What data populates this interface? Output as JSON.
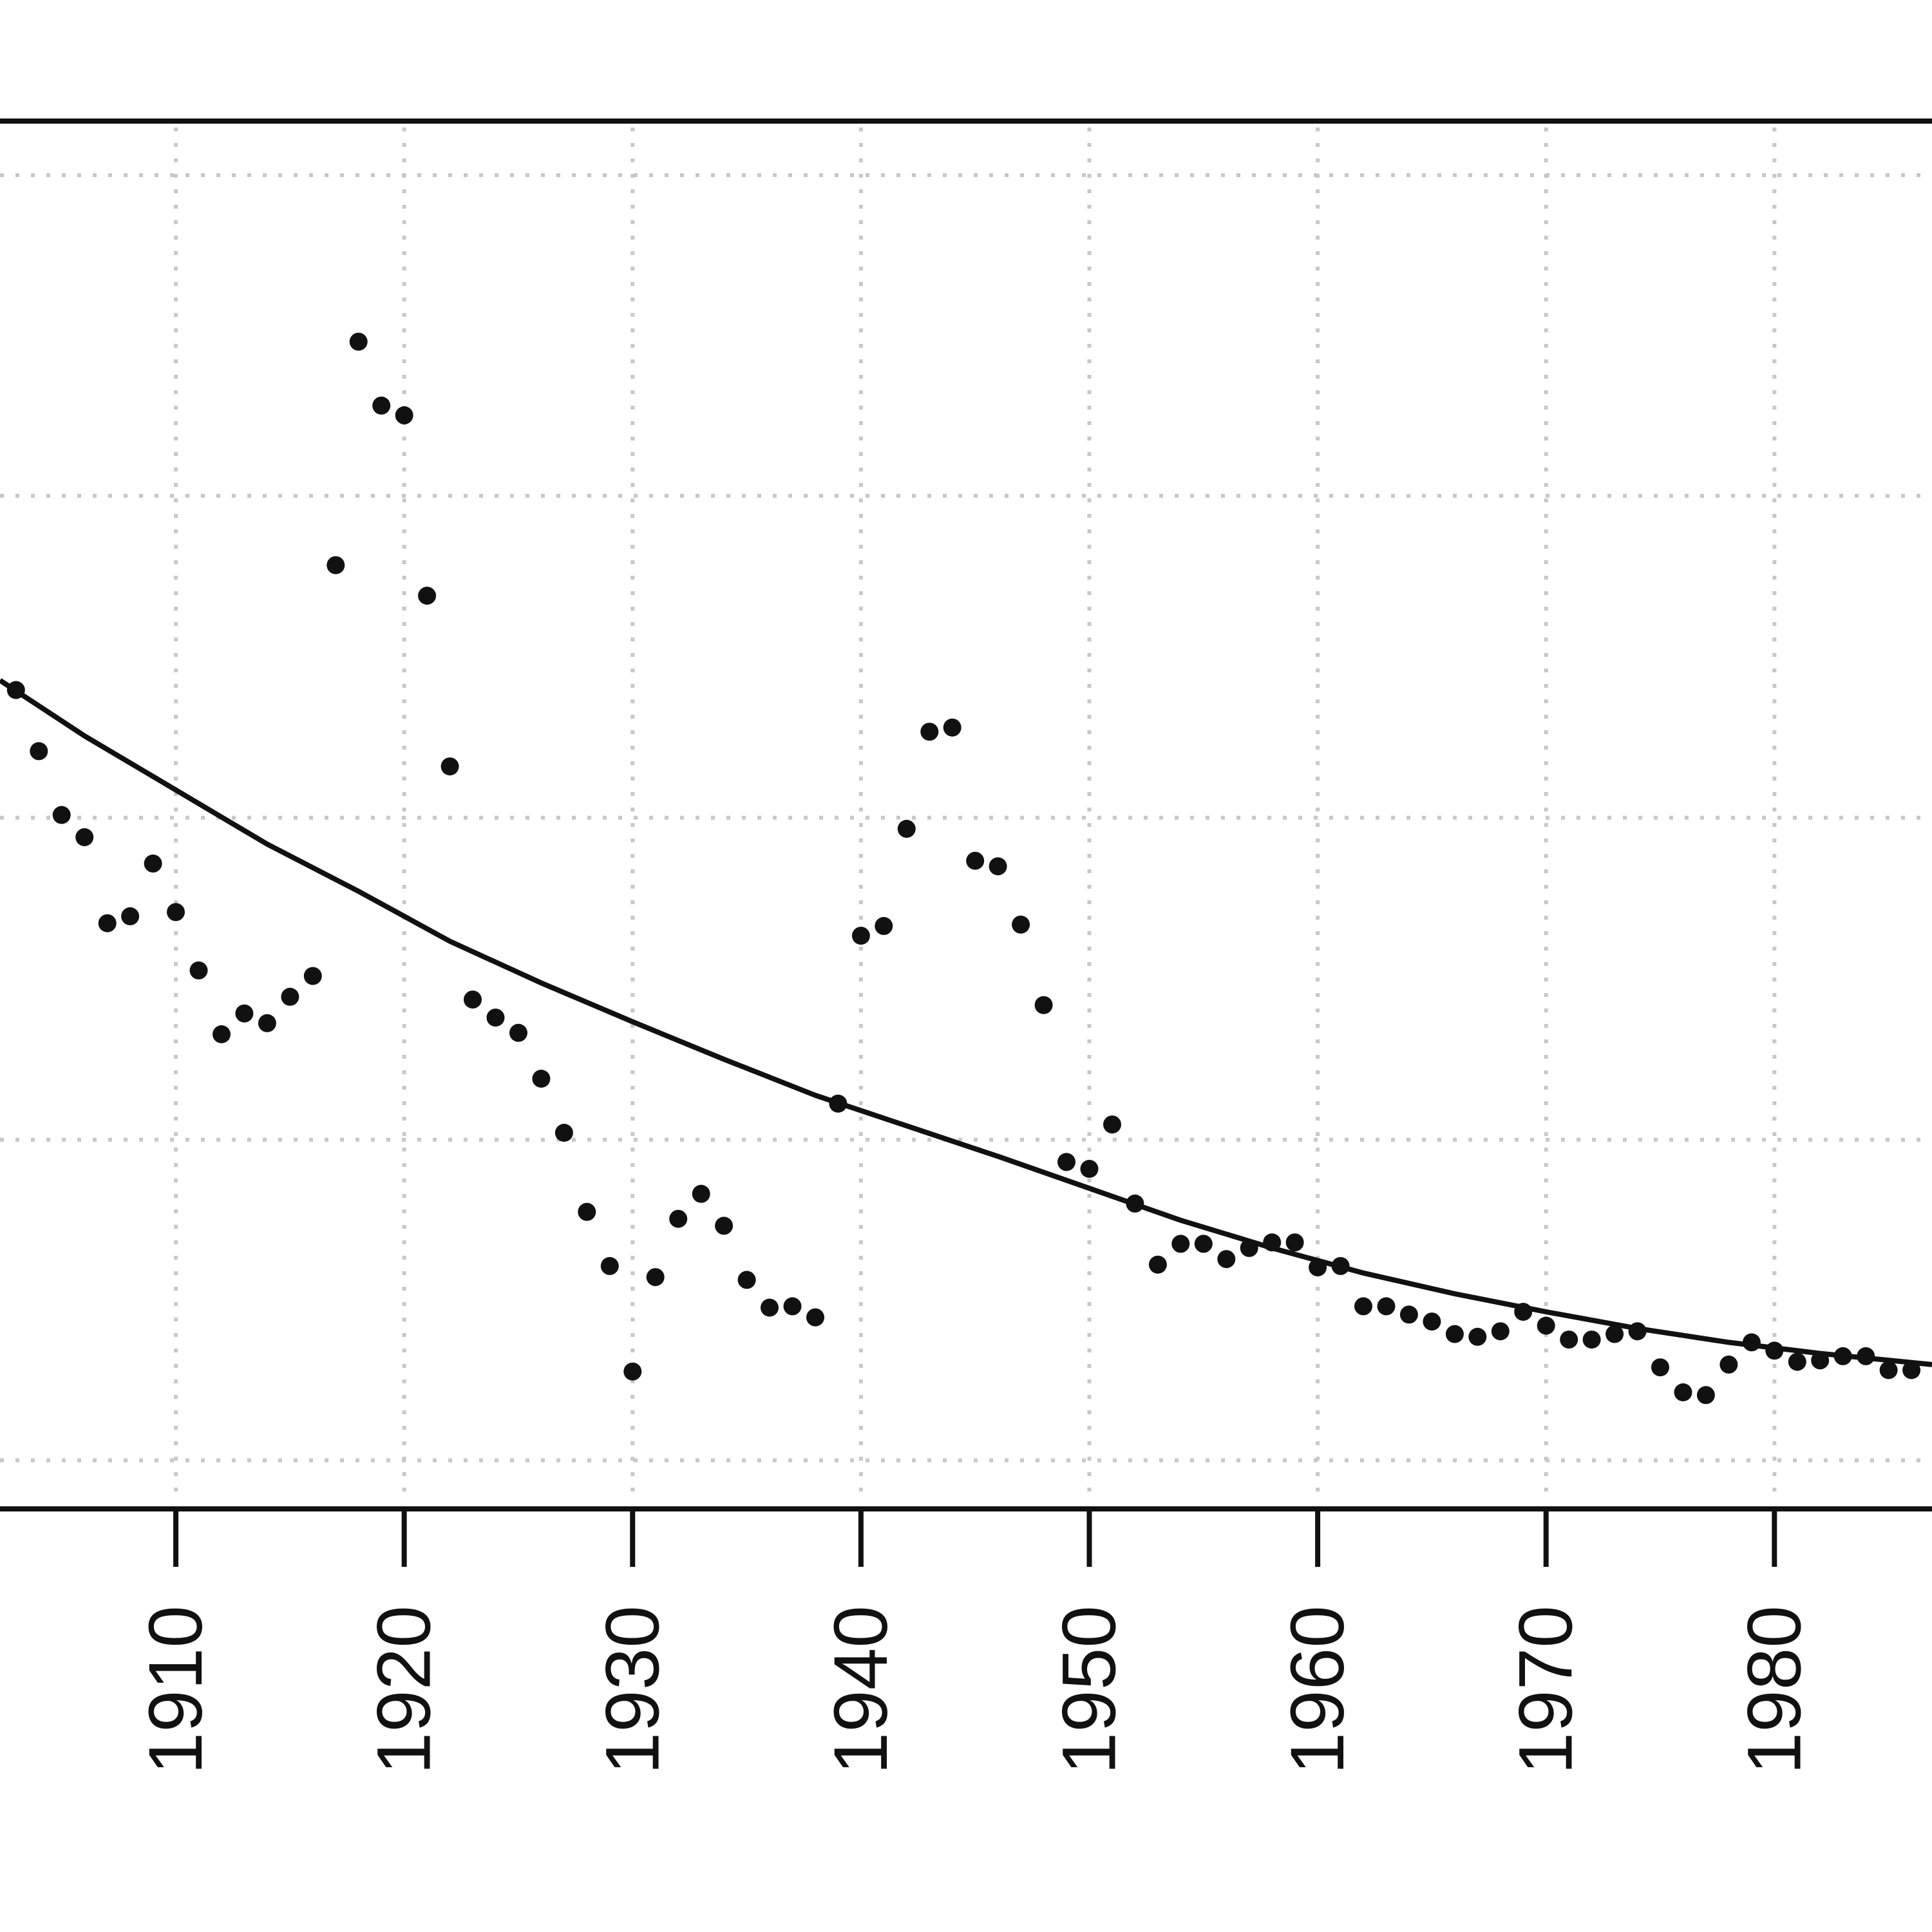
{
  "chart_data": {
    "type": "scatter",
    "title": "",
    "xlabel": "",
    "ylabel": "",
    "grid": true,
    "xlim": [
      1902.3,
      1986.9
    ],
    "ylim": [
      0,
      1
    ],
    "x_ticks": [
      1910,
      1920,
      1930,
      1940,
      1950,
      1960,
      1970,
      1980
    ],
    "x_tick_labels": [
      "1910",
      "1920",
      "1930",
      "1940",
      "1950",
      "1960",
      "1970",
      "1980"
    ],
    "y_grid": [
      0.035,
      0.266,
      0.498,
      0.73,
      0.961
    ],
    "colors": {
      "points": "#111111",
      "fit": "#111111",
      "grid": "#c8c8c8"
    },
    "series": [
      {
        "type": "scatter",
        "x": [
          1903,
          1904,
          1905,
          1906,
          1907,
          1908,
          1909,
          1910,
          1911,
          1912,
          1913,
          1914,
          1915,
          1916,
          1917,
          1918,
          1919,
          1920,
          1921,
          1922,
          1923,
          1924,
          1925,
          1926,
          1927,
          1928,
          1929,
          1930,
          1931,
          1932,
          1933,
          1934,
          1935,
          1936,
          1937,
          1938,
          1939,
          1940,
          1941,
          1942,
          1943,
          1944,
          1945,
          1946,
          1947,
          1948,
          1949,
          1950,
          1951,
          1952,
          1953,
          1954,
          1955,
          1956,
          1957,
          1958,
          1959,
          1960,
          1961,
          1962,
          1963,
          1964,
          1965,
          1966,
          1967,
          1968,
          1969,
          1970,
          1971,
          1972,
          1973,
          1974,
          1975,
          1976,
          1977,
          1978,
          1979,
          1980,
          1981,
          1982,
          1983,
          1984,
          1985,
          1986
        ],
        "y": [
          0.59,
          0.546,
          0.5,
          0.484,
          0.422,
          0.427,
          0.465,
          0.43,
          0.388,
          0.342,
          0.357,
          0.35,
          0.369,
          0.384,
          0.68,
          0.841,
          0.795,
          0.788,
          0.658,
          0.535,
          0.367,
          0.354,
          0.343,
          0.31,
          0.271,
          0.214,
          0.175,
          0.099,
          0.167,
          0.209,
          0.227,
          0.204,
          0.165,
          0.145,
          0.146,
          0.138,
          0.292,
          0.413,
          0.42,
          0.49,
          0.56,
          0.563,
          0.467,
          0.463,
          0.421,
          0.363,
          0.25,
          0.245,
          0.277,
          0.22,
          0.176,
          0.191,
          0.191,
          0.18,
          0.188,
          0.192,
          0.192,
          0.174,
          0.175,
          0.146,
          0.146,
          0.14,
          0.135,
          0.126,
          0.124,
          0.128,
          0.142,
          0.132,
          0.122,
          0.122,
          0.126,
          0.128,
          0.102,
          0.084,
          0.082,
          0.104,
          0.12,
          0.114,
          0.106,
          0.107,
          0.11,
          0.11,
          0.1,
          0.1
        ]
      },
      {
        "type": "line",
        "x": [
          1902.3,
          1906,
          1910,
          1914,
          1918,
          1922,
          1926,
          1930,
          1934,
          1938,
          1942,
          1946,
          1950,
          1954,
          1958,
          1962,
          1966,
          1970,
          1974,
          1978,
          1982,
          1986.9
        ],
        "y": [
          0.597,
          0.557,
          0.518,
          0.479,
          0.445,
          0.409,
          0.379,
          0.351,
          0.324,
          0.298,
          0.276,
          0.254,
          0.231,
          0.208,
          0.188,
          0.17,
          0.155,
          0.142,
          0.13,
          0.12,
          0.112,
          0.104
        ]
      }
    ]
  }
}
